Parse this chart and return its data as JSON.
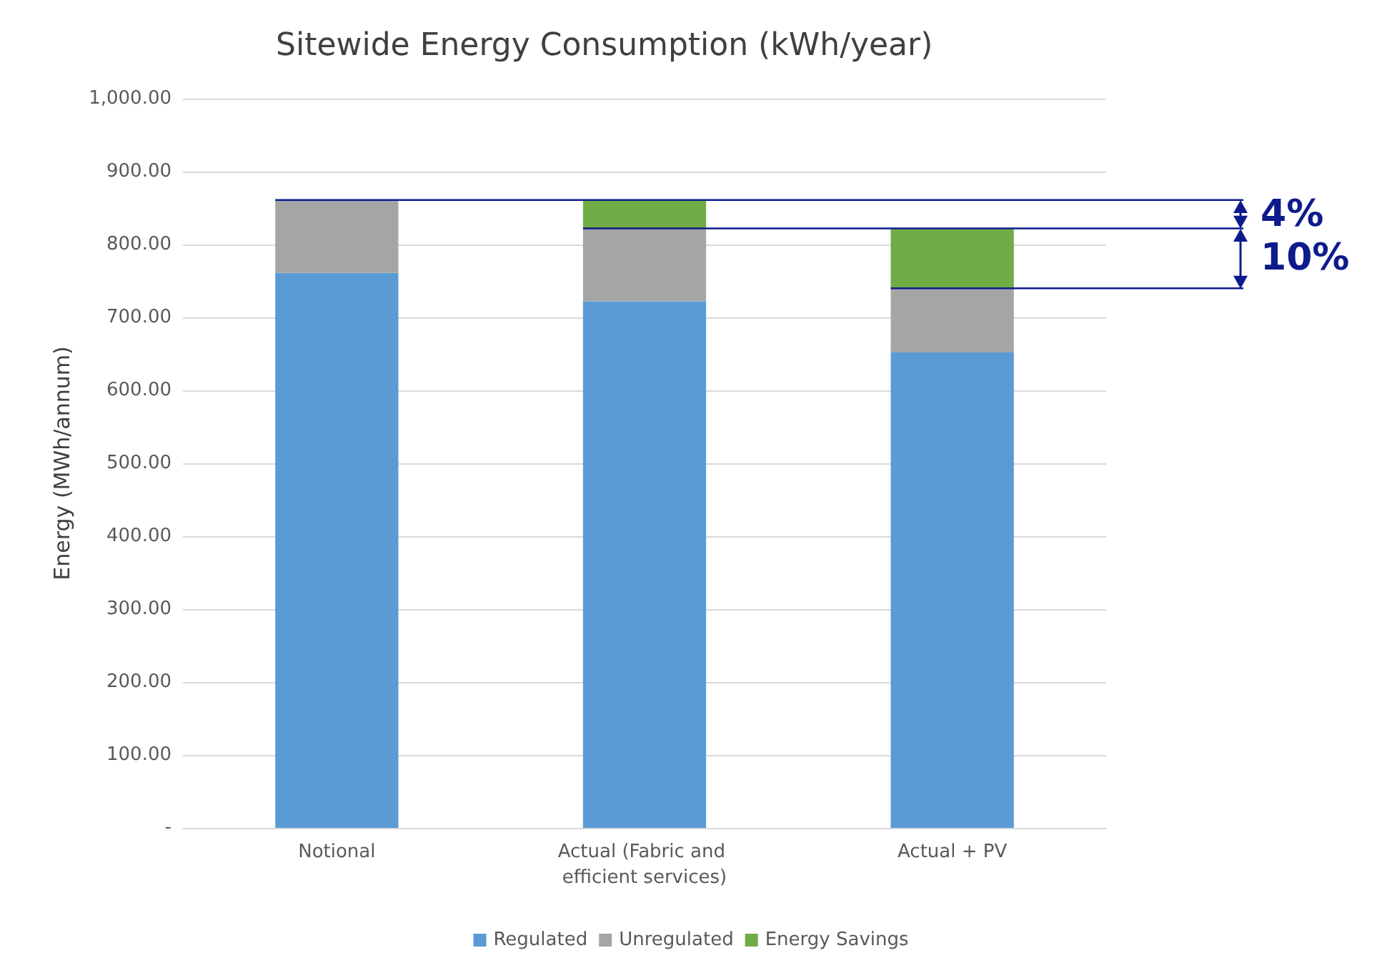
{
  "chart_data": {
    "type": "bar",
    "stacked": true,
    "title": "Sitewide Energy Consumption (kWh/year)",
    "ylabel": "Energy (MWh/annum)",
    "categories": [
      "Notional",
      "Actual (Fabric and efficient services)",
      "Actual + PV"
    ],
    "series": [
      {
        "name": "Regulated",
        "color": "#5b9bd5",
        "values": [
          761,
          722,
          652
        ]
      },
      {
        "name": "Unregulated",
        "color": "#a5a5a5",
        "values": [
          100,
          100,
          88
        ]
      },
      {
        "name": "Energy Savings",
        "color": "#70ad47",
        "values": [
          null,
          39,
          82
        ]
      }
    ],
    "ylim": [
      0,
      1000
    ],
    "yticks": [
      {
        "value": 0,
        "label": "-"
      },
      {
        "value": 100,
        "label": "100.00"
      },
      {
        "value": 200,
        "label": "200.00"
      },
      {
        "value": 300,
        "label": "300.00"
      },
      {
        "value": 400,
        "label": "400.00"
      },
      {
        "value": 500,
        "label": "500.00"
      },
      {
        "value": 600,
        "label": "600.00"
      },
      {
        "value": 700,
        "label": "700.00"
      },
      {
        "value": 800,
        "label": "800.00"
      },
      {
        "value": 900,
        "label": "900.00"
      },
      {
        "value": 1000,
        "label": "1,000.00"
      }
    ],
    "ref_lines": [
      {
        "axis": "y",
        "value": 861,
        "color": "#0d1b8c"
      },
      {
        "axis": "y",
        "value": 822,
        "color": "#0d1b8c"
      },
      {
        "axis": "y",
        "value": 740,
        "color": "#0d1b8c"
      }
    ],
    "annotations": [
      "4%",
      "10%"
    ],
    "grid": "y",
    "legend": "bottom"
  }
}
